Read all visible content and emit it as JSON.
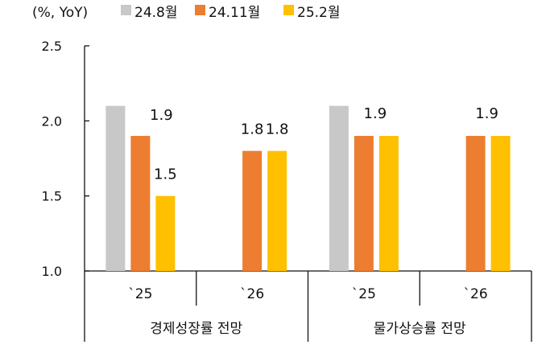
{
  "chart_data": {
    "type": "bar",
    "unit_label": "(%, YoY)",
    "legend_position": "top",
    "groups": [
      {
        "label": "경제성장률 전망",
        "categories": [
          "`25",
          "`26"
        ]
      },
      {
        "label": "물가상승률 전망",
        "categories": [
          "`25",
          "`26"
        ]
      }
    ],
    "categories": [
      "`25",
      "`26",
      "`25",
      "`26"
    ],
    "series": [
      {
        "name": "24.8월",
        "color": "#c8c8c8",
        "values": [
          2.1,
          null,
          2.1,
          null
        ],
        "labels": [
          null,
          null,
          null,
          null
        ]
      },
      {
        "name": "24.11월",
        "color": "#ed7d31",
        "values": [
          1.9,
          1.8,
          1.9,
          1.9
        ],
        "labels": [
          "1.9",
          "1.8",
          "1.9",
          "1.9"
        ]
      },
      {
        "name": "25.2월",
        "color": "#ffc000",
        "values": [
          1.5,
          1.8,
          1.9,
          1.9
        ],
        "labels": [
          "1.5",
          "1.8",
          null,
          null
        ]
      }
    ],
    "yticks": [
      "1.0",
      "1.5",
      "2.0",
      "2.5"
    ],
    "ylim": [
      1.0,
      2.5
    ],
    "grid": false
  }
}
